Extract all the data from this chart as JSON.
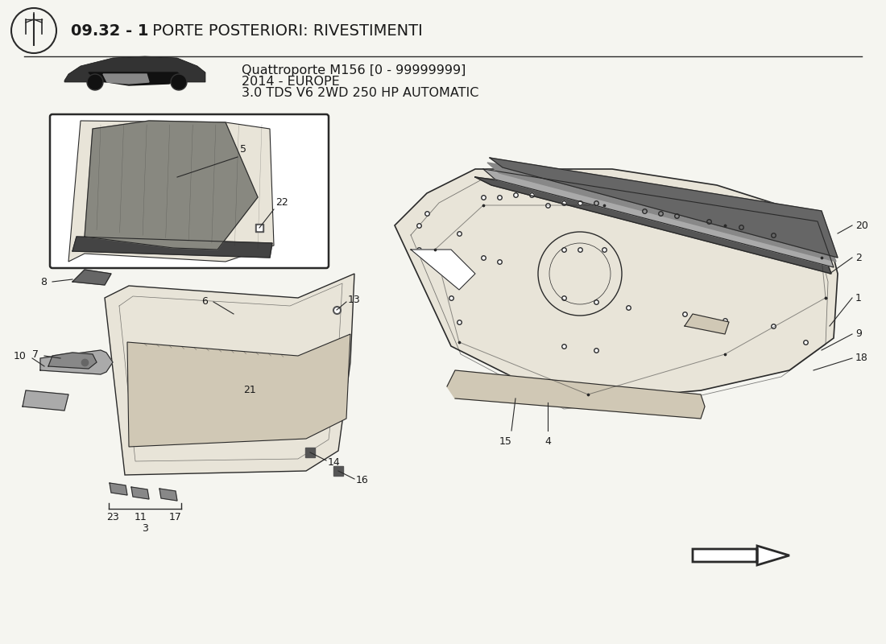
{
  "title_bold": "09.32 - 1",
  "title_rest": " PORTE POSTERIORI: RIVESTIMENTI",
  "subtitle_line1": "Quattroporte M156 [0 - 99999999]",
  "subtitle_line2": "2014 - EUROPE",
  "subtitle_line3": "3.0 TDS V6 2WD 250 HP AUTOMATIC",
  "bg_color": "#f5f5f0",
  "line_color": "#2a2a2a",
  "text_color": "#1a1a1a",
  "fill_light": "#e8e4d8",
  "fill_mid": "#d0c8b5",
  "fill_dark": "#a09888"
}
